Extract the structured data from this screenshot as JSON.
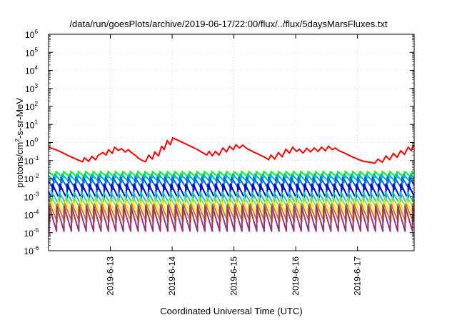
{
  "chart_data": {
    "type": "line",
    "title": "/data/run/goesPlots/archive/2019-06-17/22:00/flux/../flux/5daysMarsFluxes.txt",
    "xlabel": "Coordinated Universal Time (UTC)",
    "ylabel": "protons/cm2-s-sr-MeV",
    "ylabel_parts": {
      "pre": "protons/cm",
      "sup": "2",
      "post": "-s-sr-MeV"
    },
    "yscale": "log",
    "ylim_exp": [
      -6,
      6
    ],
    "y_tick_exponents": [
      -6,
      -5,
      -4,
      -3,
      -2,
      -1,
      0,
      1,
      2,
      3,
      4,
      5,
      6
    ],
    "y_tick_base": "10",
    "xlim": [
      "2019-06-12 00:00",
      "2019-06-17 22:00"
    ],
    "x_ticks": [
      {
        "label": "2019-6-13",
        "day_offset": 1
      },
      {
        "label": "2019-6-14",
        "day_offset": 2
      },
      {
        "label": "2019-6-15",
        "day_offset": 3
      },
      {
        "label": "2019-6-16",
        "day_offset": 4
      },
      {
        "label": "2019-6-17",
        "day_offset": 5
      }
    ],
    "x_range_days": [
      0,
      5.9167
    ],
    "grid": true,
    "legend": "none",
    "series": [
      {
        "color": "#ff0000",
        "style": "sawtooth",
        "points": [
          [
            0.0,
            0.55
          ],
          [
            0.1,
            0.42
          ],
          [
            0.2,
            0.3
          ],
          [
            0.3,
            0.2
          ],
          [
            0.4,
            0.14
          ],
          [
            0.5,
            0.1
          ],
          [
            0.55,
            0.085
          ],
          [
            0.58,
            0.14
          ],
          [
            0.65,
            0.09
          ],
          [
            0.7,
            0.17
          ],
          [
            0.76,
            0.11
          ],
          [
            0.8,
            0.19
          ],
          [
            0.88,
            0.28
          ],
          [
            0.93,
            0.2
          ],
          [
            0.97,
            0.4
          ],
          [
            1.03,
            0.25
          ],
          [
            1.07,
            0.55
          ],
          [
            1.13,
            0.36
          ],
          [
            1.18,
            0.46
          ],
          [
            1.24,
            0.3
          ],
          [
            1.29,
            0.4
          ],
          [
            1.35,
            0.26
          ],
          [
            1.4,
            0.2
          ],
          [
            1.46,
            0.13
          ],
          [
            1.52,
            0.1
          ],
          [
            1.57,
            0.085
          ],
          [
            1.62,
            0.2
          ],
          [
            1.68,
            0.12
          ],
          [
            1.72,
            0.3
          ],
          [
            1.78,
            0.18
          ],
          [
            1.83,
            0.62
          ],
          [
            1.87,
            0.4
          ],
          [
            1.92,
            1.3
          ],
          [
            1.97,
            0.75
          ],
          [
            2.01,
            1.8
          ],
          [
            2.2,
            0.9
          ],
          [
            2.4,
            0.42
          ],
          [
            2.56,
            0.2
          ],
          [
            2.6,
            0.32
          ],
          [
            2.65,
            0.18
          ],
          [
            2.7,
            0.32
          ],
          [
            2.76,
            0.2
          ],
          [
            2.82,
            0.5
          ],
          [
            2.88,
            0.3
          ],
          [
            2.93,
            0.62
          ],
          [
            2.99,
            0.4
          ],
          [
            3.03,
            0.75
          ],
          [
            3.09,
            0.5
          ],
          [
            3.14,
            0.72
          ],
          [
            3.2,
            0.48
          ],
          [
            3.3,
            0.32
          ],
          [
            3.4,
            0.22
          ],
          [
            3.5,
            0.15
          ],
          [
            3.56,
            0.11
          ],
          [
            3.6,
            0.2
          ],
          [
            3.66,
            0.12
          ],
          [
            3.72,
            0.28
          ],
          [
            3.78,
            0.16
          ],
          [
            3.84,
            0.42
          ],
          [
            3.9,
            0.26
          ],
          [
            3.95,
            0.55
          ],
          [
            4.01,
            0.32
          ],
          [
            4.06,
            0.42
          ],
          [
            4.12,
            0.26
          ],
          [
            4.18,
            0.48
          ],
          [
            4.24,
            0.3
          ],
          [
            4.3,
            0.5
          ],
          [
            4.36,
            0.32
          ],
          [
            4.42,
            0.55
          ],
          [
            4.48,
            0.35
          ],
          [
            4.53,
            0.62
          ],
          [
            4.59,
            0.4
          ],
          [
            4.64,
            0.5
          ],
          [
            4.7,
            0.35
          ],
          [
            4.8,
            0.25
          ],
          [
            4.9,
            0.17
          ],
          [
            5.0,
            0.12
          ],
          [
            5.1,
            0.09
          ],
          [
            5.2,
            0.08
          ],
          [
            5.28,
            0.07
          ],
          [
            5.33,
            0.12
          ],
          [
            5.4,
            0.08
          ],
          [
            5.46,
            0.18
          ],
          [
            5.52,
            0.11
          ],
          [
            5.58,
            0.25
          ],
          [
            5.64,
            0.15
          ],
          [
            5.7,
            0.35
          ],
          [
            5.76,
            0.22
          ],
          [
            5.82,
            0.55
          ],
          [
            5.87,
            0.35
          ],
          [
            5.9,
            0.68
          ],
          [
            5.9167,
            0.62
          ]
        ]
      },
      {
        "color": "#00ff00",
        "style": "periodic",
        "period": 0.12,
        "low": 0.011,
        "high": 0.025,
        "phase": 0.0
      },
      {
        "color": "#00aaff",
        "style": "periodic",
        "period": 0.12,
        "low": 0.006,
        "high": 0.018,
        "phase": 0.02
      },
      {
        "color": "#0066dd",
        "style": "periodic",
        "period": 0.12,
        "low": 0.0025,
        "high": 0.012,
        "phase": 0.04
      },
      {
        "color": "#0000cc",
        "style": "periodic",
        "period": 0.12,
        "low": 0.0007,
        "high": 0.005,
        "phase": 0.06
      },
      {
        "color": "#00cccc",
        "style": "periodic",
        "period": 0.12,
        "low": 0.00035,
        "high": 0.0018,
        "phase": 0.07
      },
      {
        "color": "#88dd66",
        "style": "periodic",
        "period": 0.12,
        "low": 0.0002,
        "high": 0.001,
        "phase": 0.08
      },
      {
        "color": "#ffee00",
        "style": "periodic",
        "period": 0.12,
        "low": 8e-05,
        "high": 0.0006,
        "phase": 0.09
      },
      {
        "color": "#cc7a33",
        "style": "periodic",
        "period": 0.12,
        "low": 4e-05,
        "high": 0.0004,
        "phase": 0.1
      },
      {
        "color": "#993377",
        "style": "periodic",
        "period": 0.12,
        "low": 1.2e-05,
        "high": 0.0003,
        "phase": 0.11
      }
    ]
  }
}
